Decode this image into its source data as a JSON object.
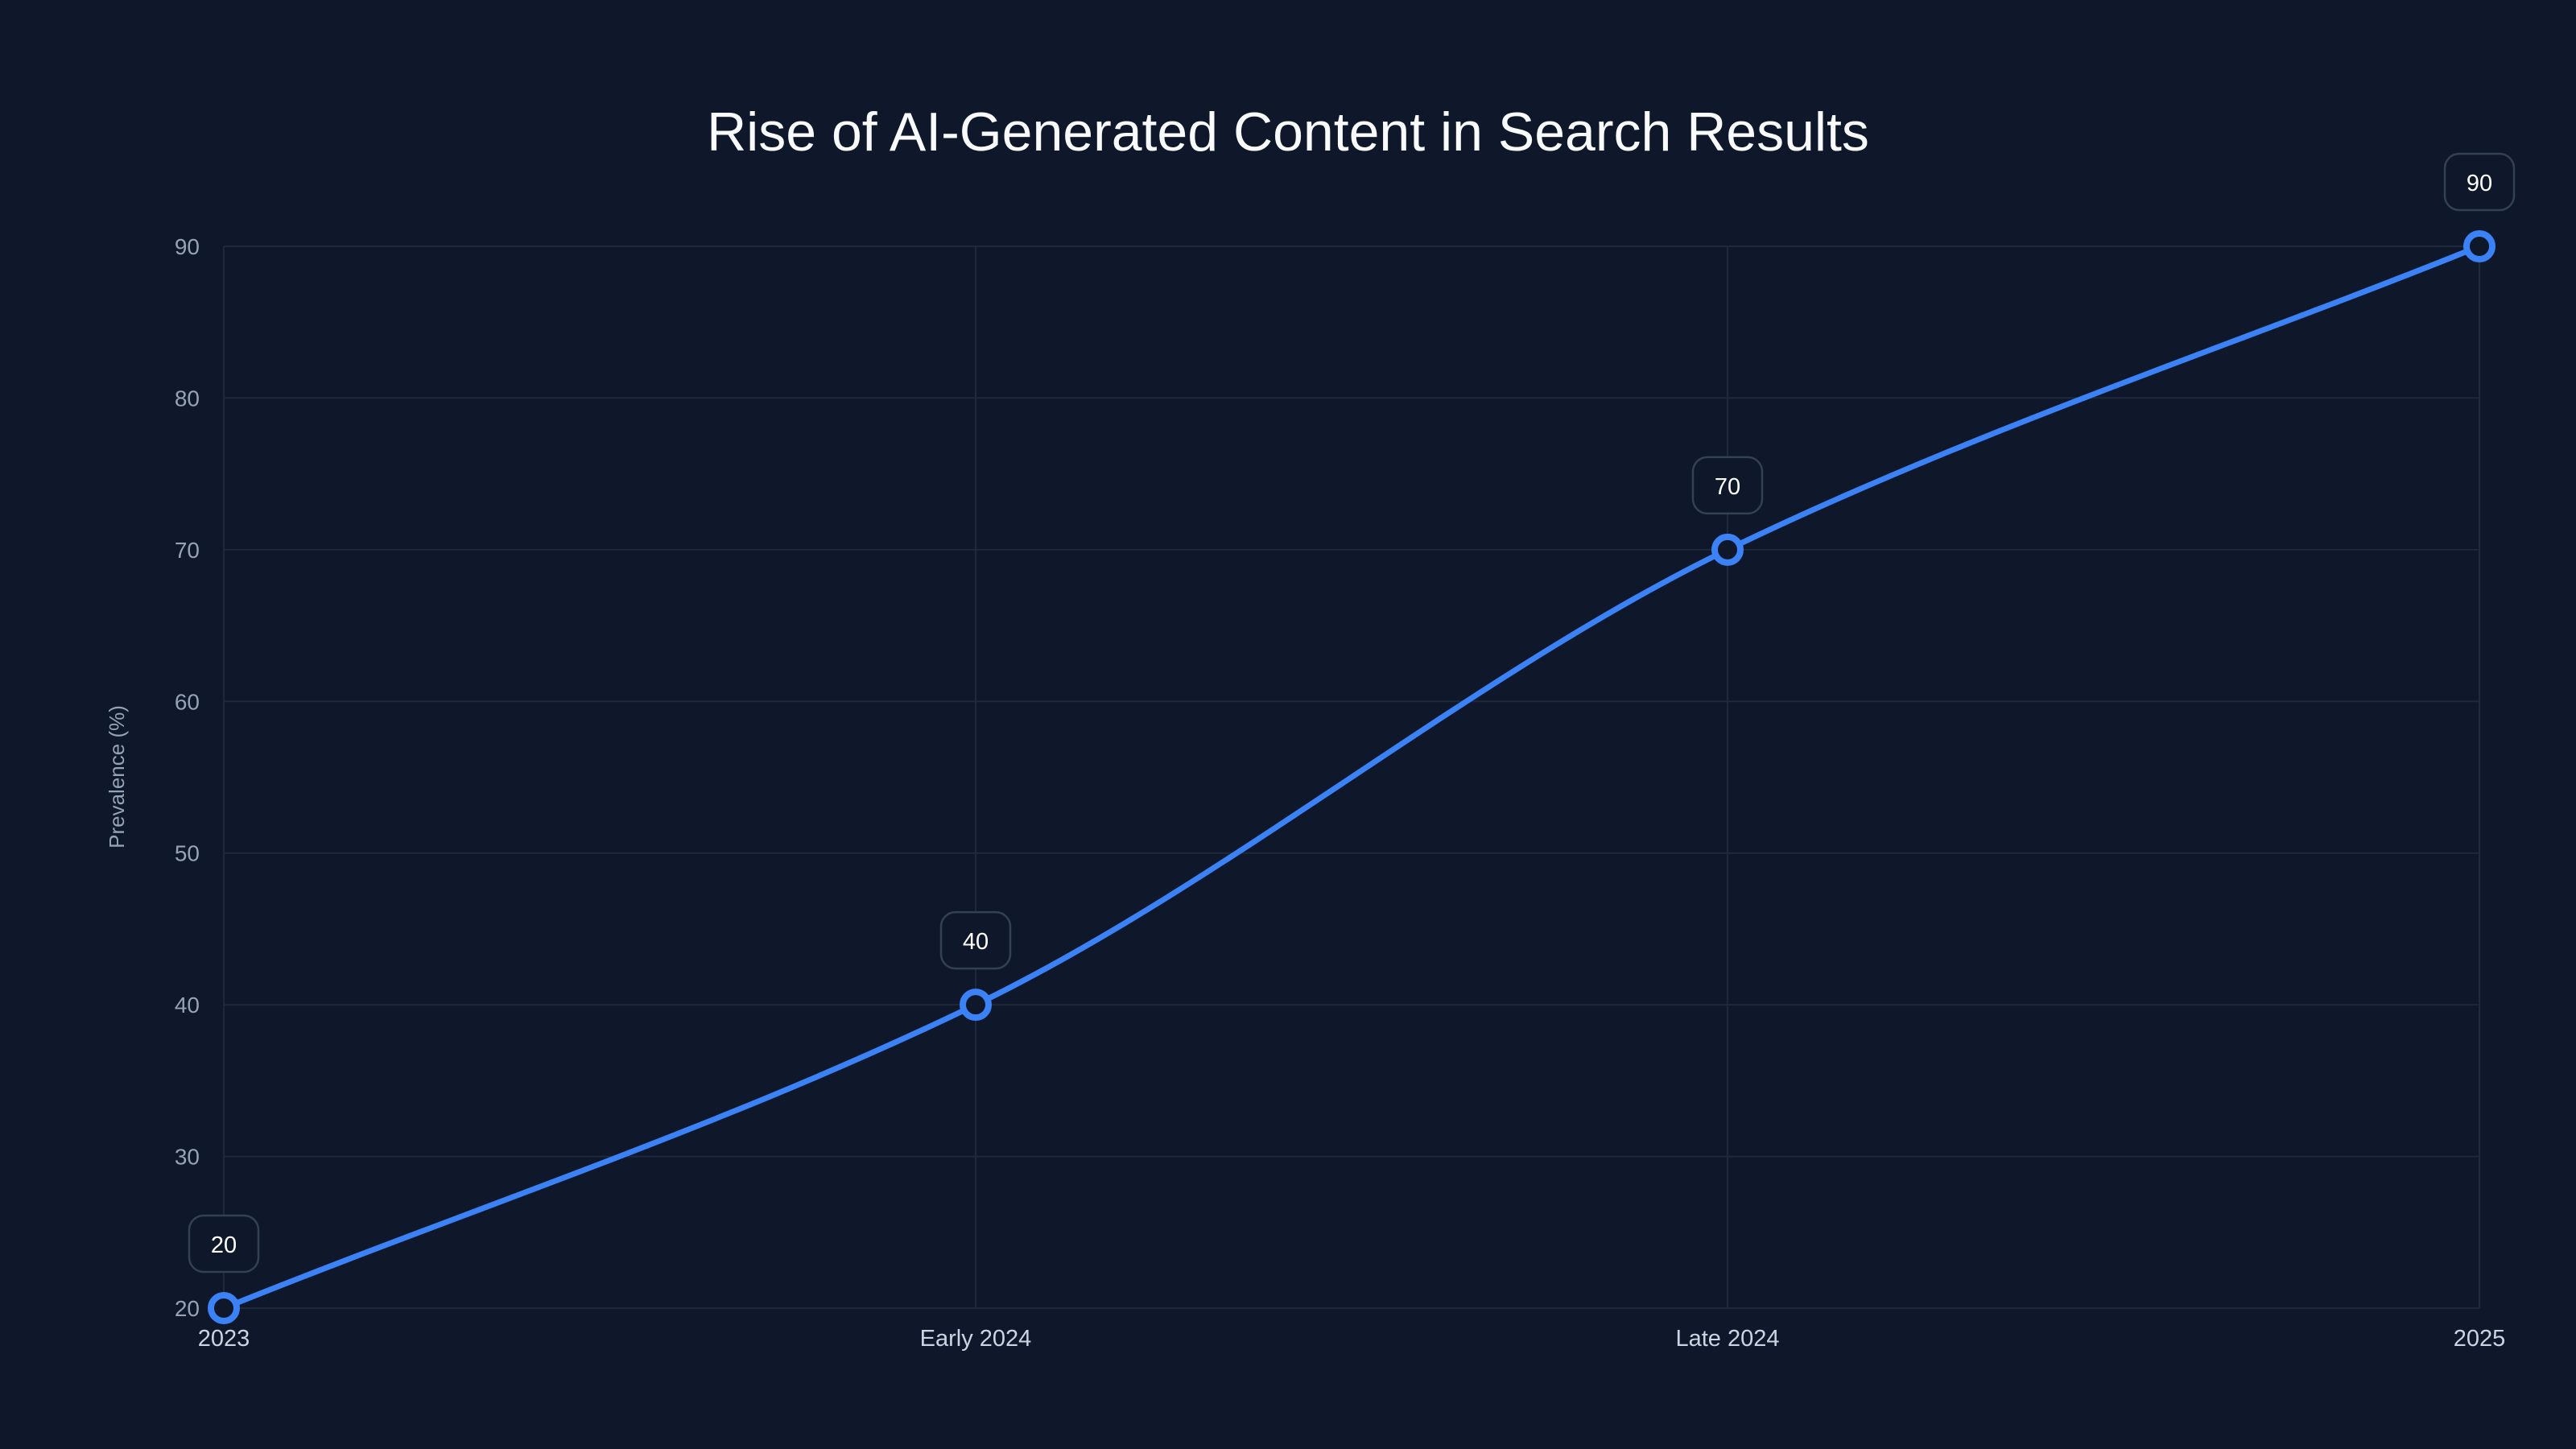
{
  "chart_data": {
    "type": "line",
    "title": "Rise of AI-Generated Content in Search Results",
    "xlabel": "",
    "ylabel": "Prevalence (%)",
    "categories": [
      "2023",
      "Early 2024",
      "Late 2024",
      "2025"
    ],
    "series": [
      {
        "name": "Prevalence (%)",
        "values": [
          20,
          40,
          70,
          90
        ],
        "color": "#3b82f6"
      }
    ],
    "ylim": [
      20,
      90
    ],
    "yticks": [
      20,
      30,
      40,
      50,
      60,
      70,
      80,
      90
    ],
    "grid": true,
    "legend": "none"
  }
}
